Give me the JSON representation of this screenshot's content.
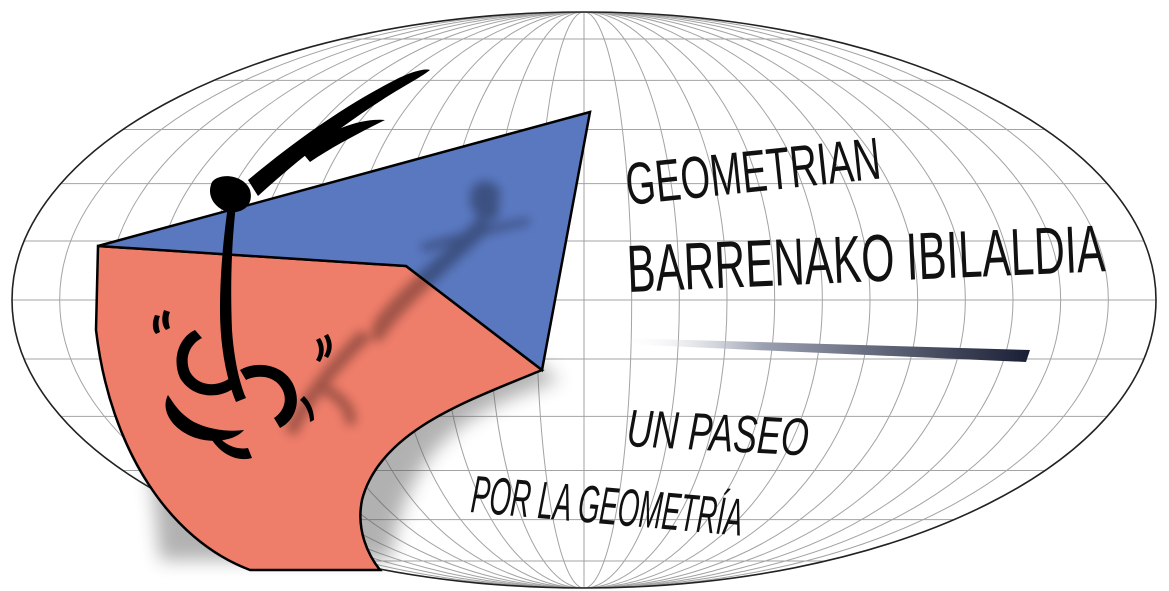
{
  "logo": {
    "title_line1": "GEOMETRIAN",
    "title_line2": "BARRENAKO IBILALDIA",
    "subtitle_line1": "UN PASEO",
    "subtitle_line2": "POR LA GEOMETRÍA"
  },
  "icons": {
    "globe": "mollweide-globe-grid-icon",
    "figure": "walking-stick-figure-icon",
    "solid": "folded-paper-solid-icon"
  },
  "colors": {
    "background": "#ffffff",
    "grid_line": "#9a9a9a",
    "blue_face": "#5a78c0",
    "red_face": "#ee7d6a",
    "figure": "#000000",
    "text": "#111111"
  }
}
